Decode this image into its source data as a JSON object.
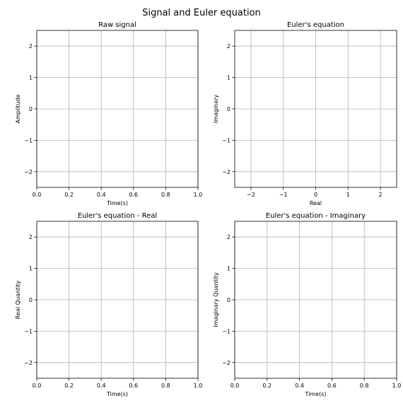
{
  "figure": {
    "title": "Signal and Euler equation"
  },
  "chart_data": [
    {
      "type": "line",
      "title": "Raw signal",
      "xlabel": "Time(s)",
      "ylabel": "Amplitude",
      "xlim": [
        0,
        1
      ],
      "ylim": [
        -2.5,
        2.5
      ],
      "xticks": [
        0.0,
        0.2,
        0.4,
        0.6,
        0.8,
        1.0
      ],
      "xtick_labels": [
        "0.0",
        "0.2",
        "0.4",
        "0.6",
        "0.8",
        "1.0"
      ],
      "yticks": [
        -2,
        -1,
        0,
        1,
        2
      ],
      "ytick_labels": [
        "−2",
        "−1",
        "0",
        "1",
        "2"
      ],
      "grid": true,
      "series": []
    },
    {
      "type": "line",
      "title": "Euler's equation",
      "xlabel": "Real",
      "ylabel": "Imaginary",
      "xlim": [
        -2.5,
        2.5
      ],
      "ylim": [
        -2.5,
        2.5
      ],
      "xticks": [
        -2,
        -1,
        0,
        1,
        2
      ],
      "xtick_labels": [
        "−2",
        "−1",
        "0",
        "1",
        "2"
      ],
      "yticks": [
        -2,
        -1,
        0,
        1,
        2
      ],
      "ytick_labels": [
        "−2",
        "−1",
        "0",
        "1",
        "2"
      ],
      "grid": true,
      "series": []
    },
    {
      "type": "line",
      "title": "Euler's equation - Real",
      "xlabel": "Time(s)",
      "ylabel": "Real Quantity",
      "xlim": [
        0,
        1
      ],
      "ylim": [
        -2.5,
        2.5
      ],
      "xticks": [
        0.0,
        0.2,
        0.4,
        0.6,
        0.8,
        1.0
      ],
      "xtick_labels": [
        "0.0",
        "0.2",
        "0.4",
        "0.6",
        "0.8",
        "1.0"
      ],
      "yticks": [
        -2,
        -1,
        0,
        1,
        2
      ],
      "ytick_labels": [
        "−2",
        "−1",
        "0",
        "1",
        "2"
      ],
      "grid": true,
      "series": []
    },
    {
      "type": "line",
      "title": "Euler's equation - Imaginary",
      "xlabel": "Time(s)",
      "ylabel": "Imaginary Quantity",
      "xlim": [
        0,
        1
      ],
      "ylim": [
        -2.5,
        2.5
      ],
      "xticks": [
        0.0,
        0.2,
        0.4,
        0.6,
        0.8,
        1.0
      ],
      "xtick_labels": [
        "0.0",
        "0.2",
        "0.4",
        "0.6",
        "0.8",
        "1.0"
      ],
      "yticks": [
        -2,
        -1,
        0,
        1,
        2
      ],
      "ytick_labels": [
        "−2",
        "−1",
        "0",
        "1",
        "2"
      ],
      "grid": true,
      "series": []
    }
  ]
}
